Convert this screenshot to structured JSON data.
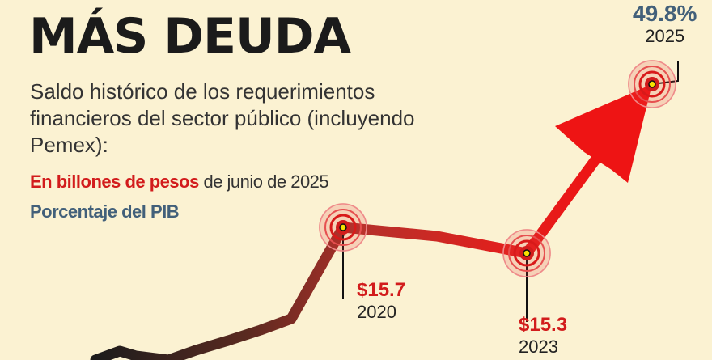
{
  "title": "MÁS DEUDA",
  "subtitle": "Saldo histórico de los requerimientos financieros del sector público (incluyendo Pemex):",
  "legend": {
    "billions_red": "En billones de pesos",
    "billions_rest": " de junio de 2025",
    "percent_gdp": "Porcentaje del PIB"
  },
  "colors": {
    "red": "#d21c1c",
    "blue": "#42607a",
    "dark": "#1b1b1b",
    "background": "#fbf2d2"
  },
  "labels": {
    "p2020": {
      "value": "$15.7",
      "year": "2020"
    },
    "p2023": {
      "value": "$15.3",
      "year": "2023"
    },
    "p2025": {
      "percent": "49.8%",
      "year": "2025"
    }
  },
  "chart_data": {
    "type": "line",
    "title": "MÁS DEUDA",
    "series": [
      {
        "name": "En billones de pesos de junio de 2025",
        "points": [
          {
            "year": "2020",
            "value": 15.7
          },
          {
            "year": "2023",
            "value": 15.3
          }
        ]
      },
      {
        "name": "Porcentaje del PIB",
        "points": [
          {
            "year": "2025",
            "value": 49.8
          }
        ]
      }
    ],
    "highlighted_years": [
      "2020",
      "2023",
      "2025"
    ],
    "grid": false,
    "legend_position": "top-left"
  }
}
